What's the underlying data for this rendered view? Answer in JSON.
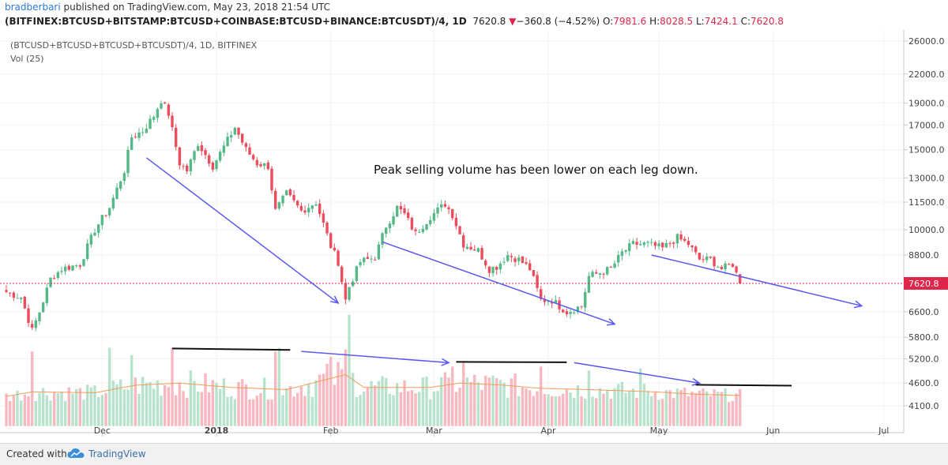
{
  "header": {
    "author": "bradberbari",
    "published_text": "published on TradingView.com, May 23, 2018 21:54 UTC",
    "symbol": "(BITFINEX:BTCUSD+BITSTAMP:BTCUSD+COINBASE:BTCUSD+BINANCE:BTCUSDT)/4, 1D",
    "last": "7620.8",
    "change": "−360.8 (−4.52%)",
    "o_label": "O:",
    "o": "7981.6",
    "h_label": "H:",
    "h": "8028.5",
    "l_label": "L:",
    "l": "7424.1",
    "c_label": "C:",
    "c": "7620.8"
  },
  "legend": {
    "line1": "(BTCUSD+BTCUSD+BTCUSD+BTCUSDT)/4, 1D, BITFINEX",
    "line2": "Vol (25)"
  },
  "annotation": "Peak selling volume has been lower on each leg down.",
  "footer": {
    "created_with": "Created with",
    "brand": "TradingView"
  },
  "colors": {
    "up": "#53b987",
    "down": "#eb4d5c",
    "vol_up": "#b7e3cd",
    "vol_down": "#f7b8bf",
    "arrow": "#5a5af0",
    "ma": "#f39c5a",
    "price_line": "#e0254b"
  },
  "chart_data": {
    "type": "candlestick",
    "y_scale": "log",
    "y_ticks": [
      "26000.0",
      "22000.0",
      "19000.0",
      "17000.0",
      "15000.0",
      "13000.0",
      "11500.0",
      "10000.0",
      "8800.0",
      "7620.8",
      "6600.0",
      "5800.0",
      "5200.0",
      "4600.0",
      "4100.0"
    ],
    "current_price_label": "7620.8",
    "x_ticks": [
      "Dec",
      "2018",
      "Feb",
      "Mar",
      "Apr",
      "May",
      "Jun",
      "Jul"
    ],
    "price_waypoints": [
      [
        "2017-11-05",
        7300
      ],
      [
        "2017-11-09",
        7100
      ],
      [
        "2017-11-12",
        6000
      ],
      [
        "2017-11-14",
        6600
      ],
      [
        "2017-11-17",
        7800
      ],
      [
        "2017-11-20",
        8200
      ],
      [
        "2017-11-25",
        8400
      ],
      [
        "2017-11-29",
        10000
      ],
      [
        "2017-12-03",
        11200
      ],
      [
        "2017-12-07",
        13500
      ],
      [
        "2017-12-09",
        16000
      ],
      [
        "2017-12-12",
        16500
      ],
      [
        "2017-12-15",
        17800
      ],
      [
        "2017-12-17",
        19300
      ],
      [
        "2017-12-19",
        18000
      ],
      [
        "2017-12-22",
        14000
      ],
      [
        "2017-12-24",
        13500
      ],
      [
        "2017-12-27",
        15500
      ],
      [
        "2017-12-31",
        13800
      ],
      [
        "2018-01-06",
        16800
      ],
      [
        "2018-01-09",
        15000
      ],
      [
        "2018-01-12",
        14000
      ],
      [
        "2018-01-15",
        13800
      ],
      [
        "2018-01-17",
        11000
      ],
      [
        "2018-01-20",
        12000
      ],
      [
        "2018-01-24",
        11000
      ],
      [
        "2018-01-28",
        11500
      ],
      [
        "2018-02-01",
        9200
      ],
      [
        "2018-02-03",
        8500
      ],
      [
        "2018-02-05",
        7000
      ],
      [
        "2018-02-06",
        7500
      ],
      [
        "2018-02-09",
        8500
      ],
      [
        "2018-02-13",
        8700
      ],
      [
        "2018-02-16",
        10200
      ],
      [
        "2018-02-19",
        11200
      ],
      [
        "2018-02-21",
        10800
      ],
      [
        "2018-02-24",
        9800
      ],
      [
        "2018-02-28",
        10700
      ],
      [
        "2018-03-04",
        11400
      ],
      [
        "2018-03-06",
        10800
      ],
      [
        "2018-03-09",
        9300
      ],
      [
        "2018-03-13",
        9000
      ],
      [
        "2018-03-16",
        8200
      ],
      [
        "2018-03-18",
        8300
      ],
      [
        "2018-03-21",
        8800
      ],
      [
        "2018-03-24",
        8600
      ],
      [
        "2018-03-27",
        8200
      ],
      [
        "2018-03-30",
        7000
      ],
      [
        "2018-04-02",
        7000
      ],
      [
        "2018-04-06",
        6600
      ],
      [
        "2018-04-10",
        6800
      ],
      [
        "2018-04-12",
        7900
      ],
      [
        "2018-04-14",
        8000
      ],
      [
        "2018-04-18",
        8200
      ],
      [
        "2018-04-21",
        8900
      ],
      [
        "2018-04-24",
        9300
      ],
      [
        "2018-04-28",
        9300
      ],
      [
        "2018-05-02",
        9100
      ],
      [
        "2018-05-06",
        9600
      ],
      [
        "2018-05-09",
        9300
      ],
      [
        "2018-05-12",
        8600
      ],
      [
        "2018-05-15",
        8600
      ],
      [
        "2018-05-18",
        8200
      ],
      [
        "2018-05-21",
        8400
      ],
      [
        "2018-05-23",
        7620.8
      ]
    ],
    "volume_waypoints": [
      [
        "2017-11-05",
        4300
      ],
      [
        "2017-11-12",
        4400
      ],
      [
        "2017-11-29",
        4380
      ],
      [
        "2017-12-10",
        4550
      ],
      [
        "2017-12-22",
        4600
      ],
      [
        "2018-01-05",
        4500
      ],
      [
        "2018-01-20",
        4450
      ],
      [
        "2018-02-05",
        4800
      ],
      [
        "2018-02-10",
        4500
      ],
      [
        "2018-02-28",
        4500
      ],
      [
        "2018-03-08",
        4600
      ],
      [
        "2018-03-20",
        4550
      ],
      [
        "2018-03-30",
        4480
      ],
      [
        "2018-04-12",
        4450
      ],
      [
        "2018-04-30",
        4400
      ],
      [
        "2018-05-10",
        4350
      ],
      [
        "2018-05-23",
        4320
      ]
    ],
    "volume_spikes": [
      [
        "2017-11-12",
        5400
      ],
      [
        "2017-12-03",
        5500
      ],
      [
        "2017-12-09",
        5300
      ],
      [
        "2017-12-20",
        5500
      ],
      [
        "2018-01-17",
        5400
      ],
      [
        "2018-01-18",
        5500
      ],
      [
        "2018-02-01",
        5250
      ],
      [
        "2018-02-05",
        5450
      ],
      [
        "2018-02-06",
        6500
      ],
      [
        "2018-03-06",
        5000
      ],
      [
        "2018-03-09",
        5100
      ],
      [
        "2018-03-30",
        5000
      ],
      [
        "2018-04-12",
        4900
      ],
      [
        "2018-04-26",
        4950
      ]
    ],
    "annotations": [
      {
        "type": "arrow",
        "from": [
          "2017-12-13",
          14400
        ],
        "to": [
          "2018-02-03",
          6900
        ],
        "label": ""
      },
      {
        "type": "arrow",
        "from": [
          "2018-02-15",
          9400
        ],
        "to": [
          "2018-04-19",
          6200
        ],
        "label": ""
      },
      {
        "type": "arrow",
        "from": [
          "2018-04-29",
          8800
        ],
        "to": [
          "2018-06-25",
          6800
        ],
        "label": ""
      },
      {
        "type": "arrow",
        "from": [
          "2018-01-24",
          5400
        ],
        "to": [
          "2018-03-05",
          5100
        ],
        "label": ""
      },
      {
        "type": "arrow",
        "from": [
          "2018-04-08",
          5100
        ],
        "to": [
          "2018-05-12",
          4600
        ],
        "label": ""
      },
      {
        "type": "segment",
        "from": [
          "2017-12-20",
          5480
        ],
        "to": [
          "2018-01-21",
          5440
        ],
        "label": ""
      },
      {
        "type": "segment",
        "from": [
          "2018-03-07",
          5120
        ],
        "to": [
          "2018-04-06",
          5110
        ],
        "label": ""
      },
      {
        "type": "segment",
        "from": [
          "2018-05-11",
          4560
        ],
        "to": [
          "2018-06-06",
          4540
        ],
        "label": ""
      }
    ]
  }
}
